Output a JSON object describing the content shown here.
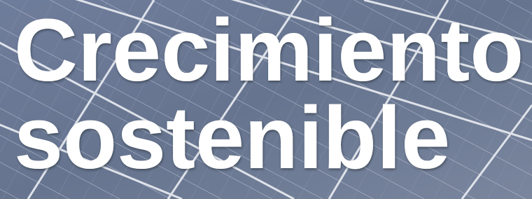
{
  "headline": {
    "lines": [
      "Crecimiento",
      "sostenible"
    ]
  }
}
